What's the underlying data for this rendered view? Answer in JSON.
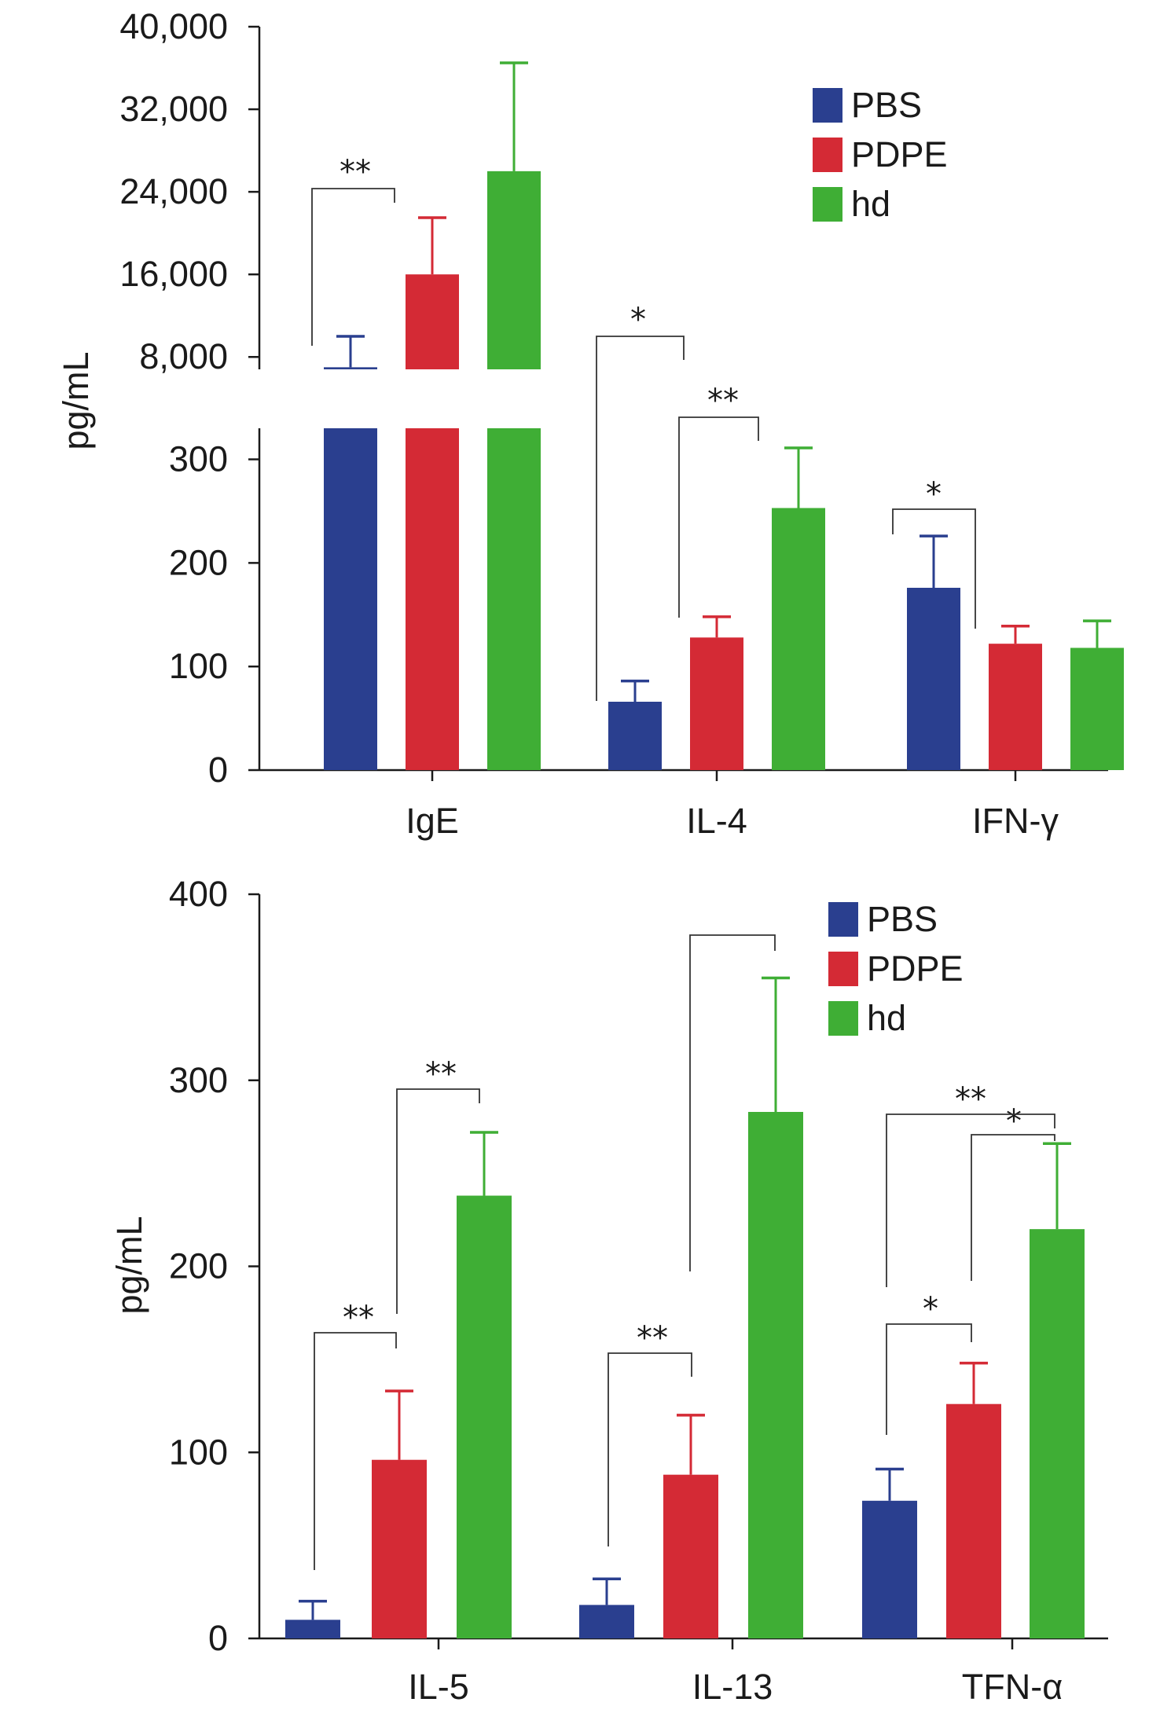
{
  "colors": {
    "PBS": "#2a3f8f",
    "PDPE": "#d42a35",
    "hd": "#3fae35"
  },
  "chart_data": [
    {
      "type": "bar",
      "ylabel": "pg/mL",
      "categories": [
        "IgE",
        "IL-4",
        "IFN-γ"
      ],
      "series": [
        {
          "name": "PBS",
          "values": [
            7000,
            66,
            176
          ],
          "errors": [
            3000,
            20,
            50
          ]
        },
        {
          "name": "PDPE",
          "values": [
            16000,
            128,
            122
          ],
          "errors": [
            5500,
            20,
            17
          ]
        },
        {
          "name": "hd",
          "values": [
            26000,
            253,
            118
          ],
          "errors": [
            10500,
            58,
            26
          ]
        }
      ],
      "broken_axis": {
        "lower": {
          "ylim": [
            0,
            330
          ],
          "ticks": [
            "0",
            "100",
            "200",
            "300"
          ]
        },
        "upper": {
          "ylim": [
            6800,
            40000
          ],
          "ticks": [
            "8,000",
            "16,000",
            "24,000",
            "32,000",
            "40,000"
          ]
        }
      },
      "legend": {
        "position": "top-right",
        "entries": [
          "PBS",
          "PDPE",
          "hd"
        ]
      },
      "significance": [
        {
          "category": "IgE",
          "from": "PBS",
          "to": "PDPE",
          "label": "**"
        },
        {
          "category": "IL-4",
          "from": "PBS",
          "to": "PDPE",
          "label": "*"
        },
        {
          "category": "IL-4",
          "from": "PDPE",
          "to": "hd",
          "label": "**"
        },
        {
          "category": "IFN-γ",
          "from": "PBS",
          "to": "PDPE",
          "label": "*"
        }
      ]
    },
    {
      "type": "bar",
      "ylabel": "pg/mL",
      "categories": [
        "IL-5",
        "IL-13",
        "TFN-α"
      ],
      "series": [
        {
          "name": "PBS",
          "values": [
            10,
            18,
            74
          ],
          "errors": [
            10,
            14,
            17
          ]
        },
        {
          "name": "PDPE",
          "values": [
            96,
            88,
            126
          ],
          "errors": [
            37,
            32,
            22
          ]
        },
        {
          "name": "hd",
          "values": [
            238,
            283,
            220
          ],
          "errors": [
            34,
            72,
            46
          ]
        }
      ],
      "ylim": [
        0,
        400
      ],
      "ticks": [
        "0",
        "100",
        "200",
        "300",
        "400"
      ],
      "legend": {
        "position": "top-right",
        "entries": [
          "PBS",
          "PDPE",
          "hd"
        ]
      },
      "significance": [
        {
          "category": "IL-5",
          "from": "PBS",
          "to": "PDPE",
          "label": "**"
        },
        {
          "category": "IL-5",
          "from": "PDPE",
          "to": "hd",
          "label": "**"
        },
        {
          "category": "IL-13",
          "from": "PBS",
          "to": "PDPE",
          "label": "**"
        },
        {
          "category": "IL-13",
          "from": "PDPE",
          "to": "hd",
          "label": ""
        },
        {
          "category": "TFN-α",
          "from": "PBS",
          "to": "PDPE",
          "label": "*"
        },
        {
          "category": "TFN-α",
          "from": "PDPE",
          "to": "hd",
          "label": "*"
        },
        {
          "category": "TFN-α",
          "from": "PBS",
          "to": "hd",
          "label": "**"
        }
      ]
    }
  ]
}
